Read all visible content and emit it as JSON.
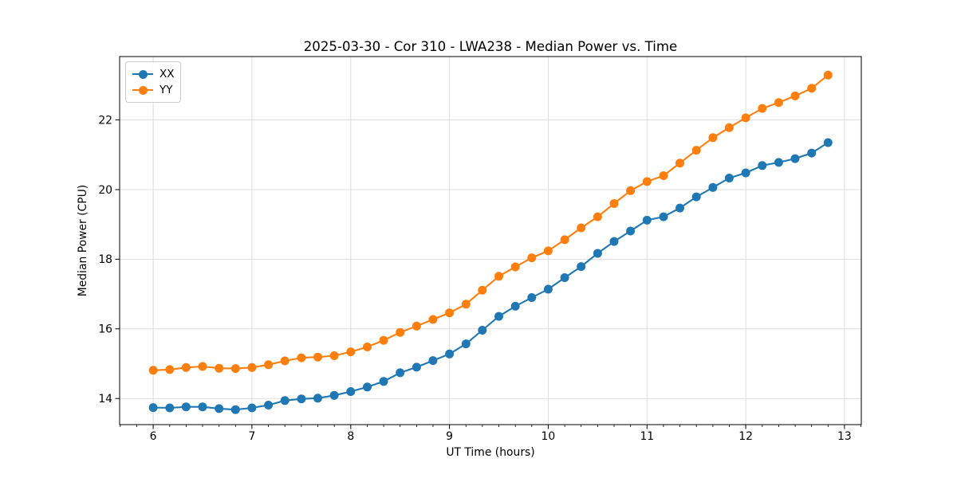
{
  "title": "2025-03-30 - Cor 310 - LWA238 - Median Power vs. Time",
  "chart_data": {
    "type": "line",
    "title": "2025-03-30 - Cor 310 - LWA238 - Median Power vs. Time",
    "xlabel": "UT Time (hours)",
    "ylabel": "Median Power (CPU)",
    "xlim": [
      5.66,
      13.17
    ],
    "ylim": [
      13.25,
      23.82
    ],
    "x_ticks": [
      6,
      7,
      8,
      9,
      10,
      11,
      12,
      13
    ],
    "y_ticks": [
      14,
      16,
      18,
      20,
      22
    ],
    "x_minor_tick_step": 0.16667,
    "grid": true,
    "legend_position": "upper left",
    "x": [
      6.0,
      6.167,
      6.333,
      6.5,
      6.667,
      6.833,
      7.0,
      7.167,
      7.333,
      7.5,
      7.667,
      7.833,
      8.0,
      8.167,
      8.333,
      8.5,
      8.667,
      8.833,
      9.0,
      9.167,
      9.333,
      9.5,
      9.667,
      9.833,
      10.0,
      10.167,
      10.333,
      10.5,
      10.667,
      10.833,
      11.0,
      11.167,
      11.333,
      11.5,
      11.667,
      11.833,
      12.0,
      12.167,
      12.333,
      12.5,
      12.667,
      12.833
    ],
    "series": [
      {
        "name": "XX",
        "color": "#1f77b4",
        "values": [
          13.74,
          13.73,
          13.76,
          13.76,
          13.71,
          13.68,
          13.73,
          13.81,
          13.94,
          13.99,
          14.01,
          14.09,
          14.2,
          14.33,
          14.49,
          14.74,
          14.9,
          15.09,
          15.28,
          15.57,
          15.96,
          16.36,
          16.65,
          16.9,
          17.14,
          17.47,
          17.79,
          18.17,
          18.51,
          18.81,
          19.12,
          19.22,
          19.47,
          19.79,
          20.06,
          20.33,
          20.48,
          20.69,
          20.78,
          20.89,
          21.05,
          21.35
        ]
      },
      {
        "name": "YY",
        "color": "#ff7f0e",
        "values": [
          14.81,
          14.83,
          14.89,
          14.92,
          14.87,
          14.86,
          14.89,
          14.97,
          15.08,
          15.17,
          15.19,
          15.23,
          15.34,
          15.48,
          15.67,
          15.9,
          16.08,
          16.27,
          16.46,
          16.71,
          17.11,
          17.51,
          17.78,
          18.04,
          18.24,
          18.56,
          18.9,
          19.22,
          19.6,
          19.97,
          20.23,
          20.4,
          20.76,
          21.13,
          21.49,
          21.78,
          22.06,
          22.33,
          22.5,
          22.69,
          22.91,
          23.29
        ]
      }
    ]
  },
  "style": {
    "grid_color": "#dddddd",
    "spine_color": "#000000",
    "text_color": "#000000",
    "background": "#ffffff"
  }
}
